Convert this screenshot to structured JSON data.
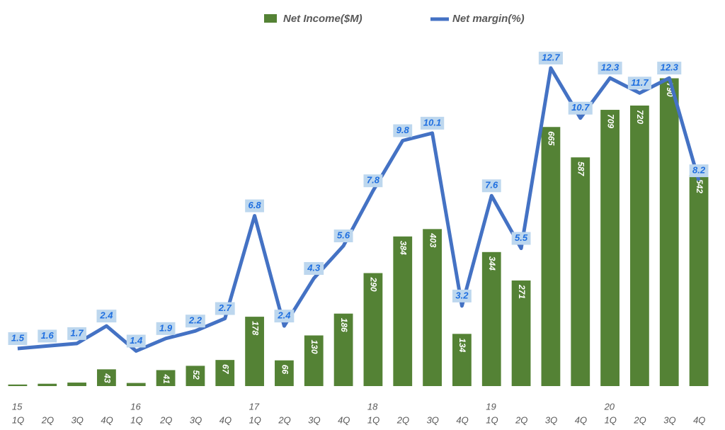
{
  "chart_data": {
    "type": "bar_line",
    "categories": [
      "1Q",
      "2Q",
      "3Q",
      "4Q",
      "1Q",
      "2Q",
      "3Q",
      "4Q",
      "1Q",
      "2Q",
      "3Q",
      "4Q",
      "1Q",
      "2Q",
      "3Q",
      "4Q",
      "1Q",
      "2Q",
      "3Q",
      "4Q",
      "1Q",
      "2Q",
      "3Q",
      "4Q"
    ],
    "year_labels": [
      "15",
      null,
      null,
      null,
      "16",
      null,
      null,
      null,
      "17",
      null,
      null,
      null,
      "18",
      null,
      null,
      null,
      "19",
      null,
      null,
      null,
      "20",
      null,
      null,
      null
    ],
    "series": [
      {
        "name": "Net Income($M)",
        "type": "bar",
        "color": "#548235",
        "values": [
          4,
          6,
          9,
          43,
          8,
          41,
          52,
          67,
          178,
          66,
          130,
          186,
          290,
          384,
          403,
          134,
          344,
          271,
          665,
          587,
          709,
          720,
          790,
          542
        ]
      },
      {
        "name": "Net margin(%)",
        "type": "line",
        "axis": "y2",
        "color": "#4472c4",
        "values": [
          1.5,
          1.6,
          1.7,
          2.4,
          1.4,
          1.9,
          2.2,
          2.7,
          6.8,
          2.4,
          4.3,
          5.6,
          7.8,
          9.8,
          10.1,
          3.2,
          7.6,
          5.5,
          12.7,
          10.7,
          12.3,
          11.7,
          12.3,
          8.2
        ]
      }
    ],
    "ylim": [
      0,
      900
    ],
    "y2lim": [
      0,
      14
    ],
    "legend": "top"
  }
}
